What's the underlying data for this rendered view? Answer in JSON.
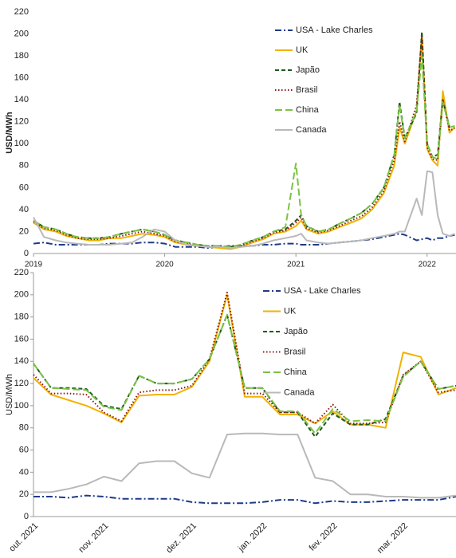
{
  "chart_data": [
    {
      "type": "line",
      "ylabel": "USD/MWh",
      "x": [
        2019.0,
        2019.08,
        2019.17,
        2019.25,
        2019.33,
        2019.42,
        2019.5,
        2019.58,
        2019.67,
        2019.75,
        2019.83,
        2019.92,
        2020.0,
        2020.08,
        2020.17,
        2020.25,
        2020.33,
        2020.42,
        2020.5,
        2020.58,
        2020.67,
        2020.75,
        2020.83,
        2020.92,
        2021.0,
        2021.04,
        2021.08,
        2021.17,
        2021.25,
        2021.33,
        2021.42,
        2021.5,
        2021.58,
        2021.67,
        2021.75,
        2021.79,
        2021.83,
        2021.92,
        2021.96,
        2022.0,
        2022.04,
        2022.08,
        2022.12,
        2022.17,
        2022.21
      ],
      "xlim": [
        2019,
        2022.22
      ],
      "xticks": [
        2019,
        2020,
        2021,
        2022
      ],
      "ylim": [
        0,
        220
      ],
      "yticks": [
        0,
        20,
        40,
        60,
        80,
        100,
        120,
        140,
        160,
        180,
        200,
        220
      ],
      "series": [
        {
          "name": "USA - Lake Charles",
          "color": "#1f3a8a",
          "style": "dashdot",
          "values": [
            9,
            10,
            8,
            8,
            8,
            8,
            8,
            9,
            9,
            9,
            10,
            10,
            9,
            6,
            6,
            6,
            5,
            6,
            7,
            7,
            7,
            8,
            8,
            9,
            9,
            8,
            8,
            8,
            9,
            10,
            11,
            12,
            13,
            15,
            17,
            18,
            17,
            12,
            13,
            14,
            12,
            14,
            14,
            16,
            17
          ]
        },
        {
          "name": "UK",
          "color": "#f2b200",
          "style": "solid",
          "values": [
            28,
            22,
            20,
            16,
            14,
            12,
            12,
            14,
            14,
            16,
            18,
            17,
            15,
            10,
            8,
            7,
            6,
            5,
            4,
            6,
            10,
            13,
            18,
            20,
            25,
            30,
            22,
            18,
            20,
            24,
            28,
            32,
            40,
            55,
            80,
            115,
            100,
            130,
            200,
            95,
            85,
            80,
            148,
            110,
            115
          ]
        },
        {
          "name": "Japão",
          "color": "#1e5a1e",
          "style": "dashed",
          "values": [
            30,
            24,
            22,
            18,
            15,
            14,
            14,
            15,
            18,
            20,
            22,
            20,
            17,
            12,
            10,
            8,
            7,
            7,
            6,
            8,
            12,
            15,
            20,
            22,
            30,
            35,
            25,
            20,
            22,
            27,
            32,
            37,
            45,
            60,
            90,
            138,
            105,
            128,
            202,
            100,
            88,
            90,
            140,
            115,
            116
          ]
        },
        {
          "name": "Brasil",
          "color": "#8b1a1a",
          "style": "dotted",
          "values": [
            29,
            23,
            21,
            17,
            14,
            13,
            13,
            14,
            16,
            18,
            20,
            18,
            16,
            11,
            9,
            7,
            6,
            6,
            5,
            7,
            11,
            14,
            19,
            21,
            28,
            33,
            23,
            19,
            21,
            25,
            30,
            34,
            42,
            57,
            85,
            120,
            102,
            135,
            198,
            97,
            86,
            85,
            140,
            112,
            114
          ]
        },
        {
          "name": "China",
          "color": "#7cc242",
          "style": "longdash",
          "values": [
            30,
            24,
            22,
            18,
            15,
            14,
            14,
            15,
            18,
            20,
            22,
            20,
            17,
            12,
            10,
            8,
            7,
            7,
            6,
            8,
            12,
            15,
            20,
            24,
            82,
            35,
            25,
            20,
            22,
            27,
            32,
            37,
            45,
            60,
            90,
            135,
            105,
            130,
            180,
            100,
            88,
            86,
            138,
            115,
            116
          ]
        },
        {
          "name": "Canada",
          "color": "#b9b9b9",
          "style": "solid",
          "values": [
            33,
            15,
            12,
            10,
            9,
            8,
            8,
            8,
            9,
            10,
            15,
            22,
            20,
            12,
            8,
            7,
            6,
            6,
            5,
            6,
            7,
            9,
            12,
            14,
            16,
            18,
            12,
            10,
            9,
            10,
            11,
            12,
            14,
            16,
            18,
            20,
            20,
            50,
            35,
            75,
            74,
            35,
            18,
            16,
            18
          ]
        }
      ]
    },
    {
      "type": "line",
      "ylabel": "USD/MWh",
      "categories": [
        "out. 2021",
        null,
        null,
        null,
        "nov. 2021",
        null,
        null,
        null,
        null,
        "dez. 2021",
        null,
        null,
        null,
        "jan. 2022",
        null,
        null,
        null,
        "fev. 2022",
        null,
        null,
        null,
        "mar. 2022",
        null,
        null,
        null
      ],
      "ylim": [
        0,
        220
      ],
      "yticks": [
        0,
        20,
        40,
        60,
        80,
        100,
        120,
        140,
        160,
        180,
        200,
        220
      ],
      "series": [
        {
          "name": "USA - Lake Charles",
          "color": "#1f3a8a",
          "style": "dashdot",
          "values": [
            18,
            18,
            17,
            19,
            18,
            16,
            16,
            16,
            16,
            13,
            12,
            12,
            12,
            13,
            15,
            15,
            12,
            14,
            13,
            13,
            14,
            15,
            15,
            15,
            18
          ]
        },
        {
          "name": "UK",
          "color": "#f2b200",
          "style": "solid",
          "values": [
            125,
            110,
            105,
            100,
            93,
            85,
            109,
            110,
            110,
            117,
            140,
            200,
            108,
            108,
            92,
            92,
            84,
            95,
            83,
            83,
            80,
            148,
            144,
            110,
            116
          ]
        },
        {
          "name": "Japão",
          "color": "#1e5a1e",
          "style": "dashed",
          "values": [
            138,
            116,
            116,
            115,
            100,
            97,
            127,
            120,
            120,
            124,
            142,
            182,
            116,
            116,
            94,
            94,
            72,
            93,
            83,
            83,
            88,
            127,
            140,
            115,
            118
          ]
        },
        {
          "name": "Brasil",
          "color": "#8b1a1a",
          "style": "dotted",
          "values": [
            128,
            111,
            111,
            110,
            94,
            86,
            112,
            114,
            114,
            118,
            142,
            202,
            111,
            111,
            94,
            94,
            84,
            101,
            84,
            84,
            85,
            128,
            140,
            112,
            114
          ]
        },
        {
          "name": "China",
          "color": "#7cc242",
          "style": "longdash",
          "values": [
            138,
            116,
            115,
            114,
            99,
            96,
            127,
            120,
            120,
            124,
            142,
            182,
            116,
            116,
            95,
            95,
            75,
            97,
            86,
            87,
            86,
            126,
            140,
            115,
            118
          ]
        },
        {
          "name": "Canada",
          "color": "#b9b9b9",
          "style": "solid",
          "values": [
            22,
            22,
            25,
            29,
            36,
            32,
            48,
            50,
            50,
            39,
            35,
            74,
            75,
            75,
            74,
            74,
            35,
            32,
            20,
            20,
            18,
            18,
            17,
            17,
            19
          ]
        }
      ]
    }
  ]
}
